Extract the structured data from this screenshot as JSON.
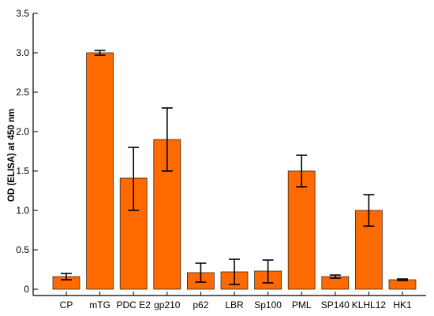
{
  "chart_data": {
    "type": "bar",
    "title": "",
    "xlabel": "",
    "ylabel": "OD (ELISA) at 450 nm",
    "categories": [
      "CP",
      "mTG",
      "PDC E2",
      "gp210",
      "p62",
      "LBR",
      "Sp100",
      "PML",
      "SP140",
      "KLHL12",
      "HK1"
    ],
    "values": [
      0.16,
      3.0,
      1.41,
      1.9,
      0.21,
      0.22,
      0.23,
      1.5,
      0.16,
      1.0,
      0.12
    ],
    "error_low": [
      0.12,
      2.97,
      1.0,
      1.5,
      0.09,
      0.06,
      0.08,
      1.3,
      0.14,
      0.8,
      0.11
    ],
    "error_high": [
      0.2,
      3.03,
      1.8,
      2.3,
      0.33,
      0.38,
      0.37,
      1.7,
      0.18,
      1.2,
      0.13
    ],
    "ylim": [
      0,
      3.5
    ],
    "y_ticks": [
      "0",
      "0.5",
      "1.0",
      "1.5",
      "2.0",
      "2.5",
      "3.0",
      "3.5"
    ],
    "y_tick_values": [
      0,
      0.5,
      1.0,
      1.5,
      2.0,
      2.5,
      3.0,
      3.5
    ],
    "grid": false,
    "legend": "none",
    "colors": {
      "bar_fill": "#ff6a00",
      "bar_stroke": "#3a2a1a",
      "axis": "#000000",
      "error_bar": "#000000"
    }
  }
}
